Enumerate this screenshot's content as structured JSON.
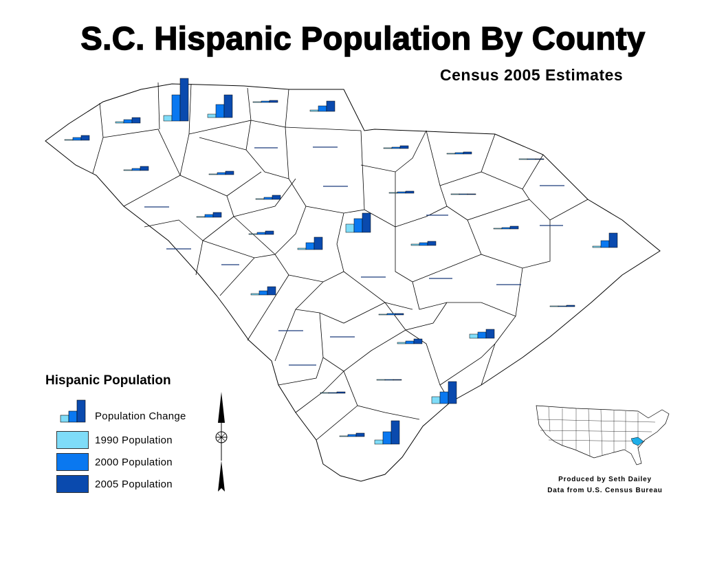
{
  "title": "S.C. Hispanic Population By County",
  "subtitle": "Census 2005 Estimates",
  "legend": {
    "title": "Hispanic Population",
    "items": [
      {
        "label": "Population Change",
        "kind": "symbol"
      },
      {
        "label": "1990 Population",
        "color": "#7fdcf8"
      },
      {
        "label": "2000 Population",
        "color": "#0a78f0"
      },
      {
        "label": "2005 Population",
        "color": "#0a4aae"
      }
    ]
  },
  "credits": {
    "line1": "Produced by Seth Dailey",
    "line2": "Data from U.S. Census Bureau"
  },
  "colors": {
    "y1990": "#7fdcf8",
    "y2000": "#0a78f0",
    "y2005": "#0a4aae",
    "highlight_state": "#1eaee8",
    "county_line": "#000000"
  },
  "icons": {
    "north_arrow": "north-arrow-icon",
    "compass": "compass-rose-icon"
  }
}
